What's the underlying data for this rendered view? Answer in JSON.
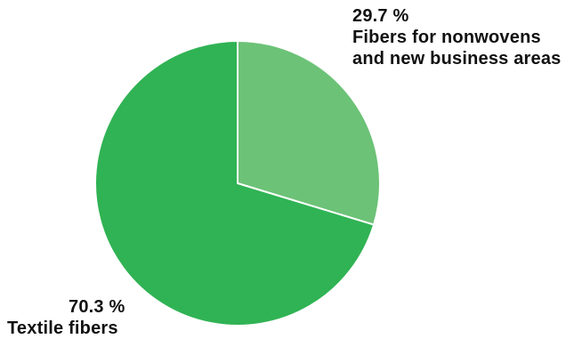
{
  "chart_data": {
    "type": "pie",
    "slices": [
      {
        "label_lines": [
          "Fibers for nonwovens",
          "and new business areas"
        ],
        "percent_label": "29.7 %",
        "value": 29.7,
        "color": "#6cc277"
      },
      {
        "label_lines": [
          "Textile fibers"
        ],
        "percent_label": "70.3 %",
        "value": 70.3,
        "color": "#30b354"
      }
    ],
    "separator_color": "#ffffff"
  }
}
